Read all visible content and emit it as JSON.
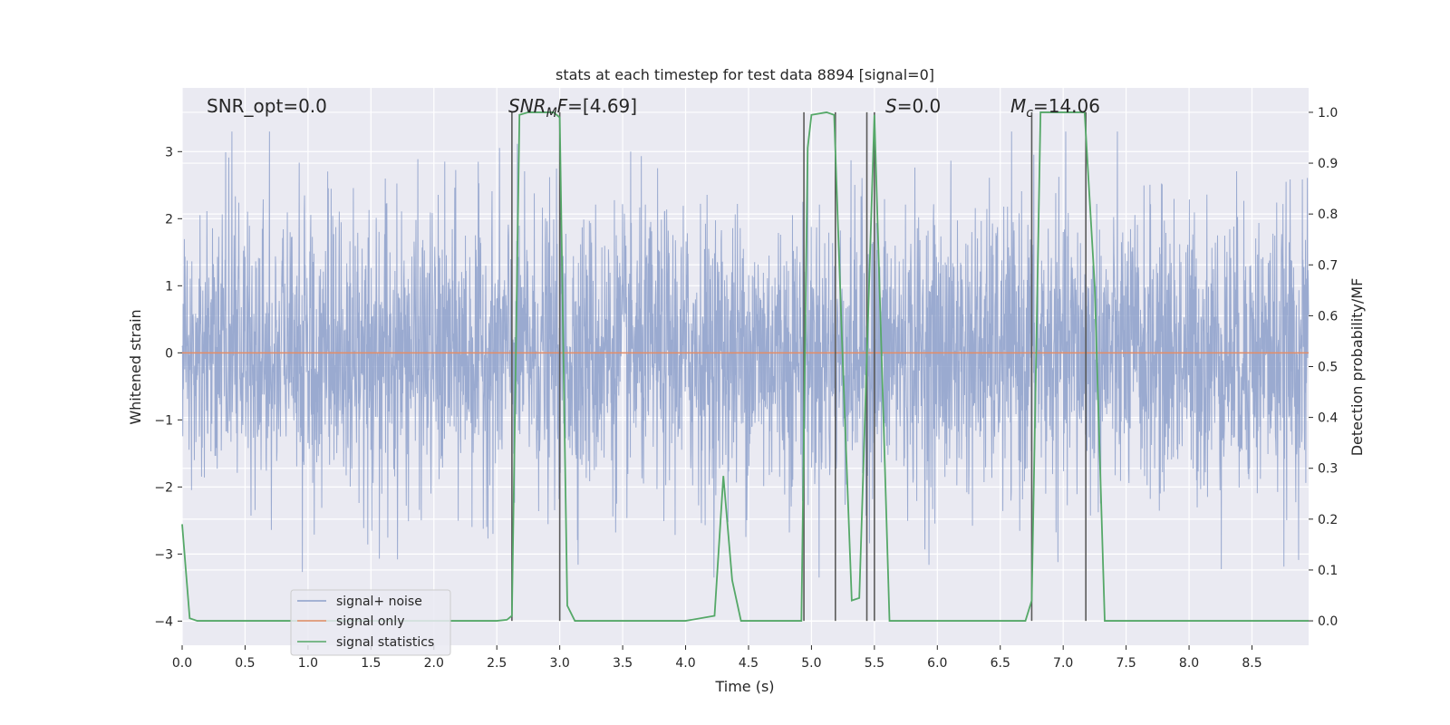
{
  "chart_data": {
    "type": "line",
    "title": "stats at each timestep for test data 8894 [signal=0]",
    "xlabel": "Time (s)",
    "ylabel_left": "Whitened strain",
    "ylabel_right": "Detection probability/MF",
    "xlim": [
      0.0,
      8.95
    ],
    "ylim_left": [
      -4.36,
      3.95
    ],
    "ylim_right": [
      -0.048,
      1.048
    ],
    "x_ticks": [
      "0.0",
      "0.5",
      "1.0",
      "1.5",
      "2.0",
      "2.5",
      "3.0",
      "3.5",
      "4.0",
      "4.5",
      "5.0",
      "5.5",
      "6.0",
      "6.5",
      "7.0",
      "7.5",
      "8.0",
      "8.5"
    ],
    "y_ticks_left": [
      "3",
      "2",
      "1",
      "0",
      "−1",
      "−2",
      "−3",
      "−4"
    ],
    "y_ticks_right": [
      "1.0",
      "0.9",
      "0.8",
      "0.7",
      "0.6",
      "0.5",
      "0.4",
      "0.3",
      "0.2",
      "0.1",
      "0.0"
    ],
    "grid": true,
    "legend_position": "lower-left",
    "annotations": [
      {
        "text": "SNR_opt=0.0"
      },
      {
        "text": "SNR_MF=[4.69]"
      },
      {
        "text": "S=0.0"
      },
      {
        "text": "M_c=14.06"
      }
    ],
    "series": [
      {
        "name": "signal+ noise",
        "axis": "left",
        "color": "#8c9fca",
        "description_values": "dense noise, approximately within [-3.4, 3.3]",
        "sample_rate_hint": 2048
      },
      {
        "name": "signal only",
        "axis": "left",
        "color": "#e48c66",
        "x": [
          0.0,
          8.95
        ],
        "y": [
          0.0,
          0.0
        ]
      },
      {
        "name": "signal statistics",
        "axis": "right",
        "color": "#55a868",
        "x": [
          0.0,
          0.06,
          0.12,
          0.5,
          1.0,
          1.5,
          2.0,
          2.5,
          2.58,
          2.62,
          2.68,
          2.75,
          2.95,
          3.0,
          3.06,
          3.12,
          3.5,
          4.0,
          4.23,
          4.3,
          4.37,
          4.44,
          4.8,
          4.92,
          4.97,
          5.0,
          5.12,
          5.18,
          5.25,
          5.32,
          5.38,
          5.5,
          5.62,
          6.0,
          6.5,
          6.7,
          6.75,
          6.82,
          7.0,
          7.17,
          7.25,
          7.33,
          7.5,
          8.0,
          8.5,
          8.95
        ],
        "y": [
          0.19,
          0.005,
          0.0,
          0.0,
          0.0,
          0.0,
          0.0,
          0.0,
          0.002,
          0.01,
          0.995,
          1.0,
          1.0,
          0.99,
          0.03,
          0.0,
          0.0,
          0.0,
          0.01,
          0.285,
          0.08,
          0.0,
          0.0,
          0.0,
          0.93,
          0.995,
          1.0,
          0.995,
          0.5,
          0.04,
          0.045,
          0.995,
          0.0,
          0.0,
          0.0,
          0.0,
          0.04,
          1.0,
          1.0,
          1.0,
          0.66,
          0.0,
          0.0,
          0.0,
          0.0,
          0.0
        ]
      }
    ],
    "vertical_markers_x": [
      2.62,
      3.0,
      4.94,
      5.19,
      5.44,
      5.5,
      6.75,
      7.18
    ]
  },
  "colors": {
    "plot_bg": "#eaeaf2",
    "grid": "#ffffff",
    "marker_line": "#5a5a5a"
  }
}
